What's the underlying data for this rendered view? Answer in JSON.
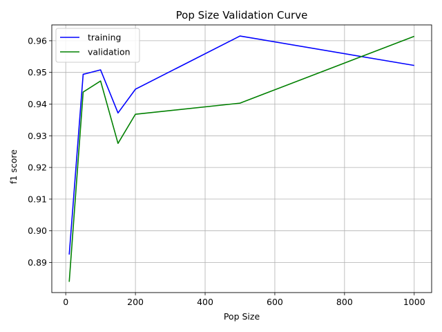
{
  "chart_data": {
    "type": "line",
    "title": "Pop Size Validation Curve",
    "xlabel": "Pop Size",
    "ylabel": "f1 score",
    "x": [
      10,
      50,
      100,
      150,
      200,
      500,
      1000
    ],
    "series": [
      {
        "name": "training",
        "color": "#0000ff",
        "values": [
          0.8925,
          0.9494,
          0.9508,
          0.9372,
          0.9447,
          0.9615,
          0.9522
        ]
      },
      {
        "name": "validation",
        "color": "#008000",
        "values": [
          0.8839,
          0.9438,
          0.9473,
          0.9276,
          0.9368,
          0.9403,
          0.9614
        ]
      }
    ],
    "xlim": [
      -40,
      1050
    ],
    "ylim": [
      0.8805,
      0.965
    ],
    "xticks": [
      0,
      200,
      400,
      600,
      800,
      1000
    ],
    "xtick_labels": [
      "0",
      "200",
      "400",
      "600",
      "800",
      "1000"
    ],
    "yticks": [
      0.89,
      0.9,
      0.91,
      0.92,
      0.93,
      0.94,
      0.95,
      0.96
    ],
    "ytick_labels": [
      "0.89",
      "0.90",
      "0.91",
      "0.92",
      "0.93",
      "0.94",
      "0.95",
      "0.96"
    ],
    "grid": true,
    "legend_position": "top-left"
  }
}
